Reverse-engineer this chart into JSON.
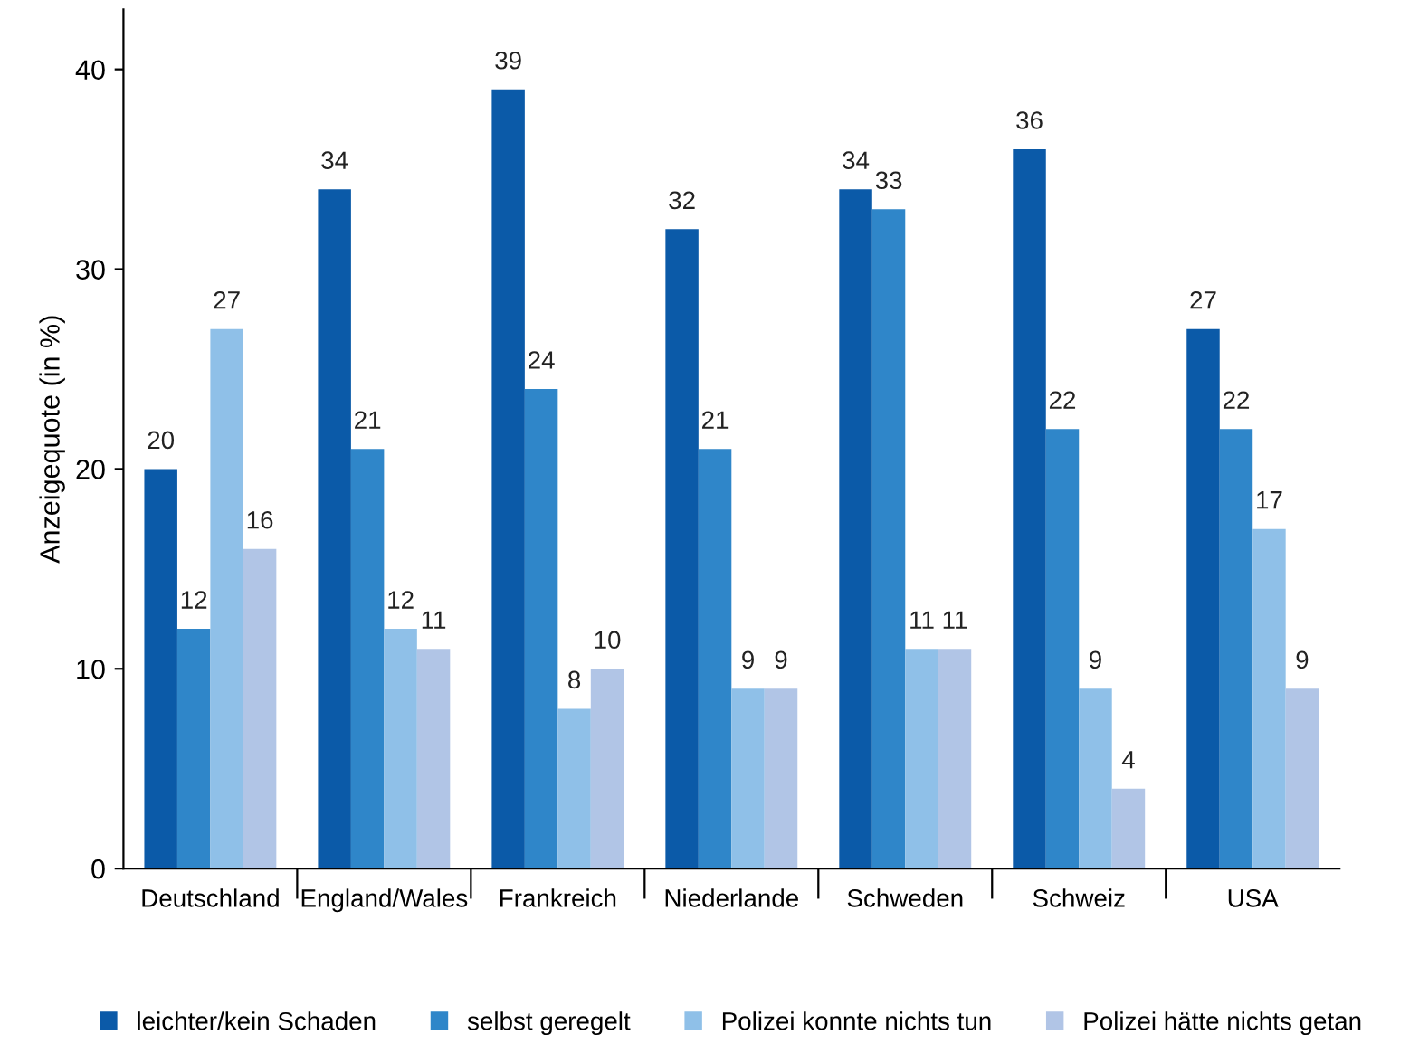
{
  "chart_data": {
    "type": "bar",
    "ylabel": "Anzeigequote (in %)",
    "categories": [
      "Deutschland",
      "England/Wales",
      "Frankreich",
      "Niederlande",
      "Schweden",
      "Schweiz",
      "USA"
    ],
    "series": [
      {
        "name": "leichter/kein Schaden",
        "color": "#0b5aa8",
        "values": [
          20,
          34,
          39,
          32,
          34,
          36,
          27
        ]
      },
      {
        "name": "selbst geregelt",
        "color": "#2f86c9",
        "values": [
          12,
          21,
          24,
          21,
          33,
          22,
          22
        ]
      },
      {
        "name": "Polizei konnte nichts tun",
        "color": "#8fc0e8",
        "values": [
          27,
          12,
          8,
          9,
          11,
          9,
          17
        ]
      },
      {
        "name": "Polizei hätte nichts getan",
        "color": "#b1c5e6",
        "values": [
          16,
          11,
          10,
          9,
          11,
          4,
          9
        ]
      }
    ],
    "ylim": [
      0,
      43
    ],
    "yticks": [
      0,
      10,
      20,
      30,
      40
    ],
    "grid": false,
    "legend": "bottom",
    "data_labels": true
  }
}
